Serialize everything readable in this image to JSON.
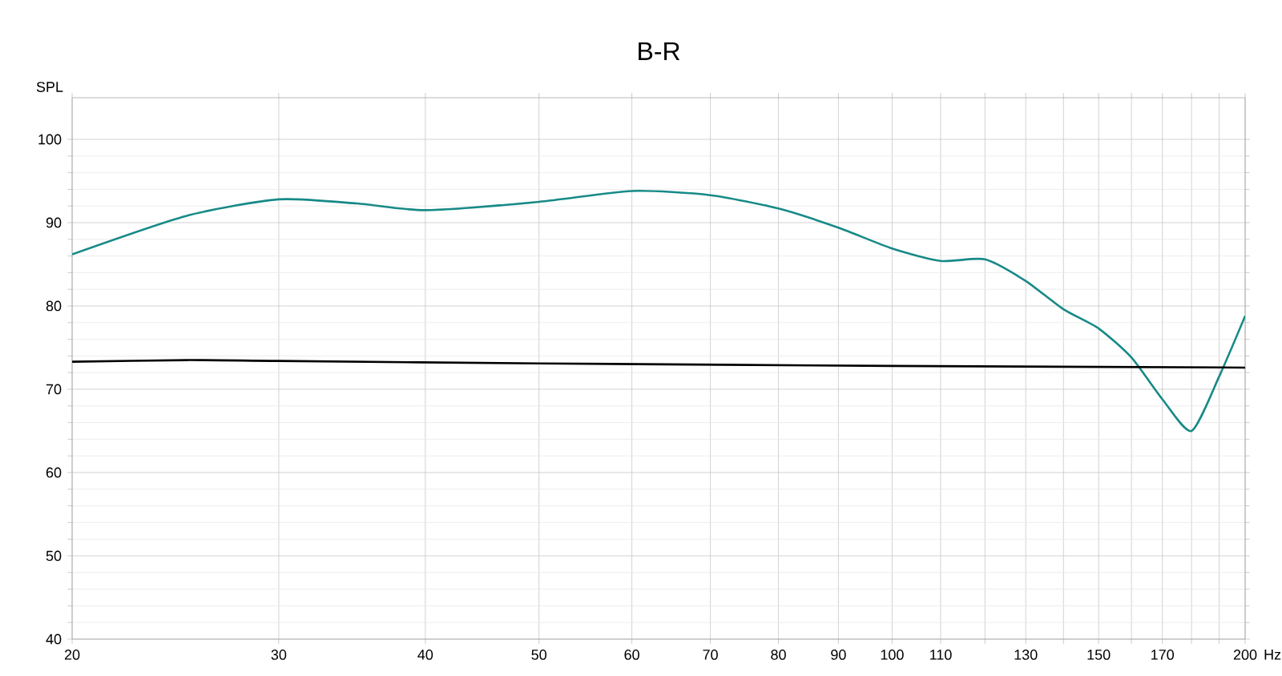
{
  "chart_data": {
    "type": "line",
    "title": "B-R",
    "xlabel": "Hz",
    "ylabel": "SPL",
    "log": "x",
    "xlim": [
      20,
      200
    ],
    "ylim": [
      40,
      105
    ],
    "xticks": [
      20,
      30,
      40,
      50,
      60,
      70,
      80,
      90,
      100,
      110,
      {
        "value": 120,
        "label": null
      },
      130,
      {
        "value": 140,
        "label": null
      },
      150,
      {
        "value": 160,
        "label": null
      },
      170,
      {
        "value": 180,
        "label": null
      },
      {
        "value": 190,
        "label": null
      },
      200
    ],
    "yticks": [
      40,
      50,
      60,
      70,
      80,
      90,
      100
    ],
    "grid": true,
    "marker": "none",
    "line_style": "solid",
    "series": [
      {
        "color": "#178a87",
        "x": [
          20,
          25,
          30,
          35,
          40,
          50,
          60,
          70,
          80,
          90,
          100,
          110,
          120,
          130,
          140,
          150,
          160,
          170,
          180,
          190,
          200
        ],
        "values": [
          86.2,
          90.8,
          92.8,
          92.3,
          91.5,
          92.5,
          93.8,
          93.3,
          91.7,
          89.4,
          86.9,
          85.4,
          85.6,
          83.0,
          79.6,
          77.3,
          73.8,
          68.8,
          65.0,
          71.5,
          78.8
        ]
      },
      {
        "color": "#000000",
        "x": [
          20,
          25,
          30,
          50,
          100,
          200
        ],
        "values": [
          73.3,
          73.5,
          73.4,
          73.1,
          72.8,
          72.6
        ]
      }
    ]
  }
}
